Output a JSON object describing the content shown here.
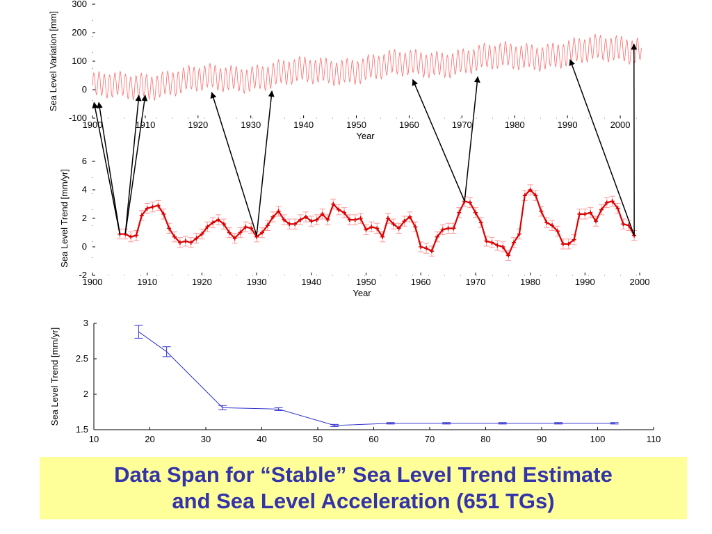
{
  "caption": {
    "line1": "Data Span for “Stable” Sea Level Trend Estimate",
    "line2": "and Sea Level Acceleration (651 TGs)"
  },
  "chart_data": [
    {
      "id": "variation",
      "type": "line",
      "xlabel": "Year",
      "ylabel": "Sea Level Variation [mm]",
      "xlim": [
        1900,
        2005
      ],
      "ylim": [
        -100,
        300
      ],
      "xticks": [
        1900,
        1910,
        1920,
        1930,
        1940,
        1950,
        1960,
        1970,
        1980,
        1990,
        2000
      ],
      "yticks": [
        -100,
        0,
        100,
        200,
        300
      ],
      "series_color": "#ff6666",
      "trend_intercept": 5,
      "trend_slope": 1.38,
      "annual_amplitude": 40,
      "start_year": 1900,
      "end_year": 2004
    },
    {
      "id": "trend",
      "type": "line",
      "xlabel": "Year",
      "ylabel": "Sea Level Trend [mm/yr]",
      "xlim": [
        1900,
        2000
      ],
      "ylim": [
        -2,
        6
      ],
      "xticks": [
        1900,
        1910,
        1920,
        1930,
        1940,
        1950,
        1960,
        1970,
        1980,
        1990,
        2000
      ],
      "yticks": [
        -2,
        0,
        2,
        4,
        6
      ],
      "series_color": "#dd0000",
      "error_color": "#ff9999",
      "x": [
        1905,
        1906,
        1907,
        1908,
        1909,
        1910,
        1911,
        1912,
        1913,
        1914,
        1915,
        1916,
        1917,
        1918,
        1919,
        1920,
        1921,
        1922,
        1923,
        1924,
        1925,
        1926,
        1927,
        1928,
        1929,
        1930,
        1931,
        1932,
        1933,
        1934,
        1935,
        1936,
        1937,
        1938,
        1939,
        1940,
        1941,
        1942,
        1943,
        1944,
        1945,
        1946,
        1947,
        1948,
        1949,
        1950,
        1951,
        1952,
        1953,
        1954,
        1955,
        1956,
        1957,
        1958,
        1959,
        1960,
        1961,
        1962,
        1963,
        1964,
        1965,
        1966,
        1967,
        1968,
        1969,
        1970,
        1971,
        1972,
        1973,
        1974,
        1975,
        1976,
        1977,
        1978,
        1979,
        1980,
        1981,
        1982,
        1983,
        1984,
        1985,
        1986,
        1987,
        1988,
        1989,
        1990,
        1991,
        1992,
        1993,
        1994,
        1995,
        1996,
        1997,
        1998,
        1999
      ],
      "y": [
        0.9,
        0.9,
        0.7,
        0.8,
        2.2,
        2.7,
        2.8,
        2.9,
        2.3,
        1.3,
        0.7,
        0.3,
        0.4,
        0.3,
        0.6,
        0.9,
        1.4,
        1.7,
        1.9,
        1.6,
        1.0,
        0.6,
        1.0,
        1.4,
        1.3,
        0.7,
        1.0,
        1.5,
        2.1,
        2.5,
        1.9,
        1.6,
        1.6,
        1.9,
        2.1,
        1.8,
        1.9,
        2.3,
        1.9,
        3.0,
        2.6,
        2.4,
        1.9,
        1.9,
        2.0,
        1.2,
        1.4,
        1.3,
        0.7,
        2.0,
        1.6,
        1.3,
        1.8,
        2.1,
        1.4,
        0.0,
        -0.1,
        -0.3,
        0.7,
        1.2,
        1.3,
        1.3,
        2.4,
        3.2,
        3.1,
        2.4,
        1.7,
        0.4,
        0.3,
        0.1,
        0.0,
        -0.6,
        0.3,
        0.9,
        3.6,
        4.0,
        3.6,
        2.5,
        1.7,
        1.5,
        1.1,
        0.2,
        0.2,
        0.5,
        2.3,
        2.3,
        2.4,
        1.8,
        2.6,
        3.1,
        3.2,
        2.7,
        1.6,
        1.5,
        0.8
      ],
      "error": 0.35
    },
    {
      "id": "span",
      "type": "line",
      "xlabel": "",
      "ylabel": "Sea Level Trend [mm/yr]",
      "xlim": [
        10,
        110
      ],
      "ylim": [
        1.5,
        3
      ],
      "xticks": [
        10,
        20,
        30,
        40,
        50,
        60,
        70,
        80,
        90,
        100,
        110
      ],
      "yticks": [
        1.5,
        2,
        2.5,
        3
      ],
      "series_color": "#3333cc",
      "x": [
        18,
        23,
        33,
        43,
        53,
        63,
        73,
        83,
        93,
        103
      ],
      "y": [
        2.88,
        2.6,
        1.81,
        1.79,
        1.56,
        1.59,
        1.59,
        1.59,
        1.59,
        1.59
      ],
      "error": [
        0.09,
        0.07,
        0.03,
        0.02,
        0.015,
        0.01,
        0.01,
        0.01,
        0.01,
        0.01
      ]
    }
  ],
  "arrows": [
    {
      "from": [
        1905,
        0.9
      ],
      "to": [
        1900.3,
        -45
      ]
    },
    {
      "from": [
        1905,
        0.9
      ],
      "to": [
        1901.2,
        -45
      ]
    },
    {
      "from": [
        1906,
        0.9
      ],
      "to": [
        1908.8,
        -20
      ]
    },
    {
      "from": [
        1906,
        0.9
      ],
      "to": [
        1910.0,
        -20
      ]
    },
    {
      "from": [
        1930,
        0.8
      ],
      "to": [
        1922.6,
        -10
      ]
    },
    {
      "from": [
        1930,
        0.8
      ],
      "to": [
        1934.0,
        -5
      ]
    },
    {
      "from": [
        1968,
        3.2
      ],
      "to": [
        1960.7,
        35
      ]
    },
    {
      "from": [
        1968,
        3.2
      ],
      "to": [
        1973.0,
        45
      ]
    },
    {
      "from": [
        1999,
        0.8
      ],
      "to": [
        1990.5,
        105
      ]
    },
    {
      "from": [
        1999,
        0.8
      ],
      "to": [
        2002.6,
        160
      ]
    }
  ]
}
